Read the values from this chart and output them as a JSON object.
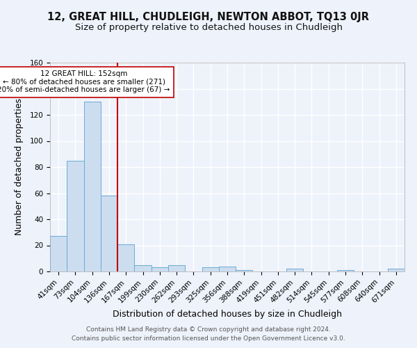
{
  "title": "12, GREAT HILL, CHUDLEIGH, NEWTON ABBOT, TQ13 0JR",
  "subtitle": "Size of property relative to detached houses in Chudleigh",
  "xlabel": "Distribution of detached houses by size in Chudleigh",
  "ylabel": "Number of detached properties",
  "categories": [
    "41sqm",
    "73sqm",
    "104sqm",
    "136sqm",
    "167sqm",
    "199sqm",
    "230sqm",
    "262sqm",
    "293sqm",
    "325sqm",
    "356sqm",
    "388sqm",
    "419sqm",
    "451sqm",
    "482sqm",
    "514sqm",
    "545sqm",
    "577sqm",
    "608sqm",
    "640sqm",
    "671sqm"
  ],
  "values": [
    27,
    85,
    130,
    58,
    21,
    5,
    3,
    5,
    0,
    3,
    4,
    1,
    0,
    0,
    2,
    0,
    0,
    1,
    0,
    0,
    2
  ],
  "bar_color": "#ccddf0",
  "bar_edge_color": "#6aaad4",
  "vline_color": "#c00000",
  "annotation_text": "12 GREAT HILL: 152sqm\n← 80% of detached houses are smaller (271)\n20% of semi-detached houses are larger (67) →",
  "annotation_box_color": "#ffffff",
  "annotation_box_edge": "#c00000",
  "ylim": [
    0,
    160
  ],
  "yticks": [
    0,
    20,
    40,
    60,
    80,
    100,
    120,
    140,
    160
  ],
  "footer_line1": "Contains HM Land Registry data © Crown copyright and database right 2024.",
  "footer_line2": "Contains public sector information licensed under the Open Government Licence v3.0.",
  "bg_color": "#eef2fb",
  "grid_color": "#ffffff",
  "title_fontsize": 10.5,
  "subtitle_fontsize": 9.5,
  "axis_label_fontsize": 9,
  "tick_fontsize": 7.5,
  "footer_fontsize": 6.5
}
